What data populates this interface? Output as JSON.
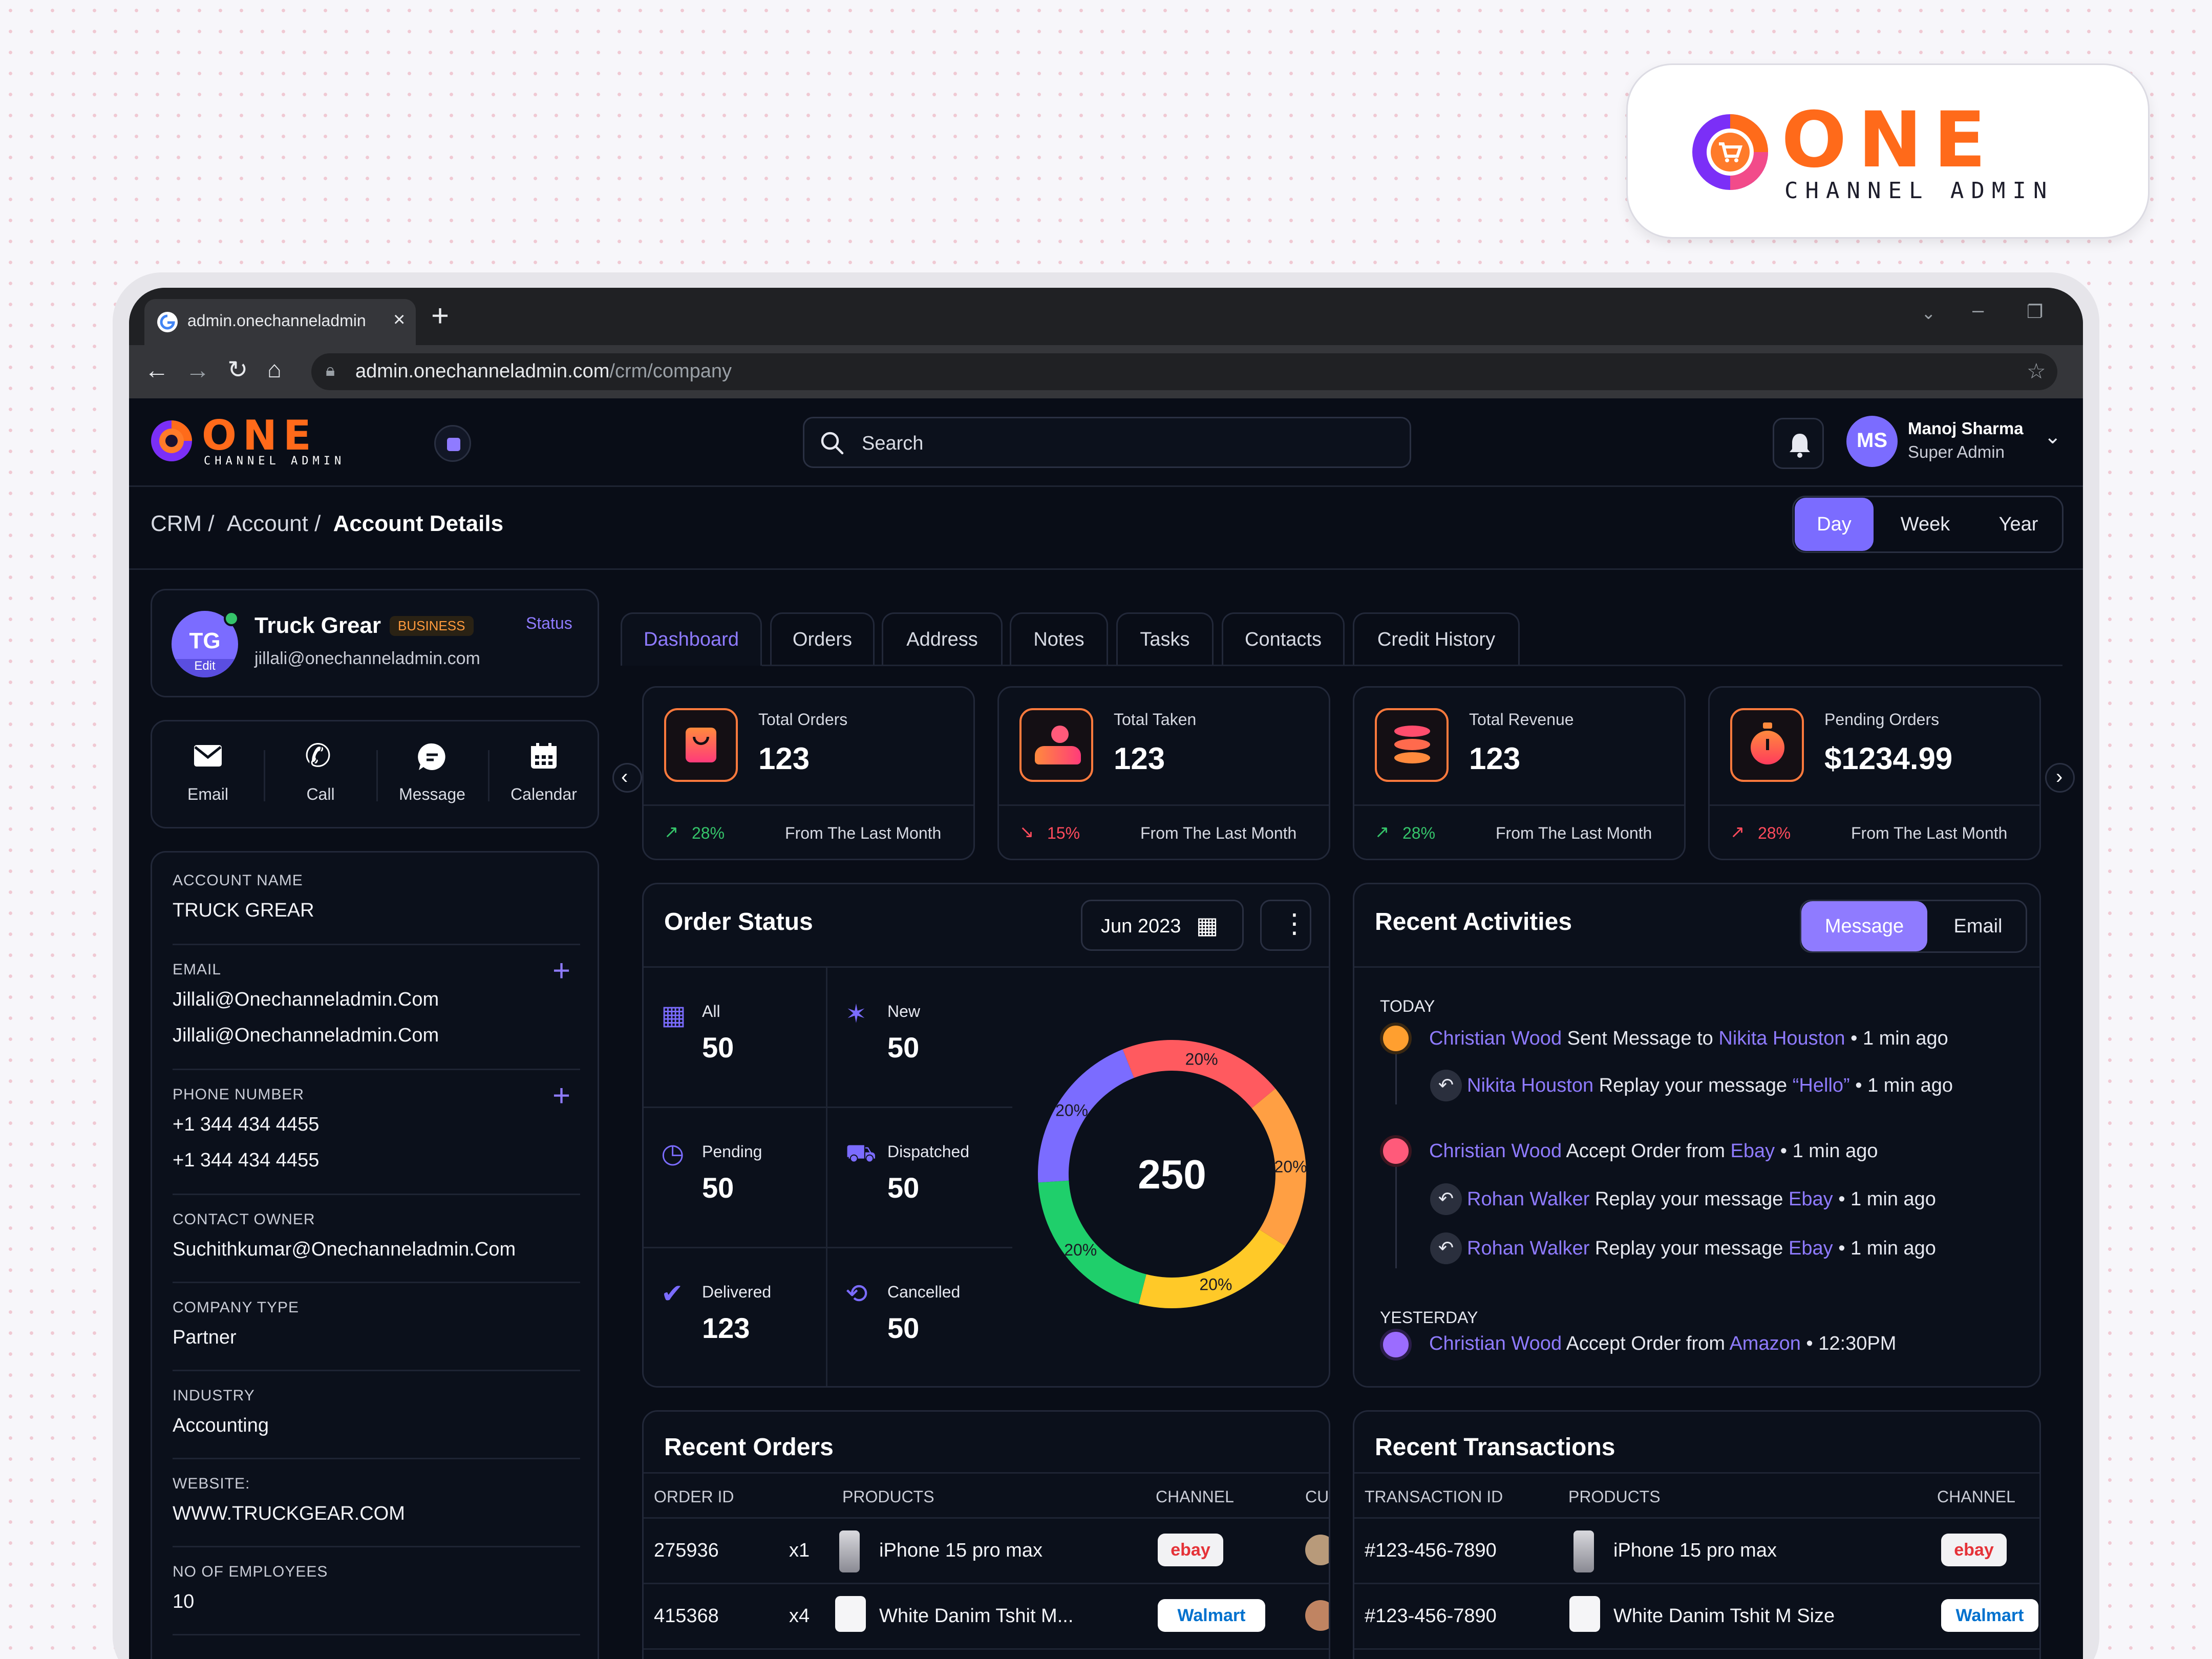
{
  "brand": {
    "word": "ONE",
    "subword": "CHANNEL ADMIN"
  },
  "browser": {
    "tab_title": "admin.onechanneladmin",
    "url_domain": "admin.onechanneladmin.com",
    "url_path": "/crm/company"
  },
  "header": {
    "search_placeholder": "Search",
    "user_initials": "MS",
    "user_name": "Manoj Sharma",
    "user_role": "Super Admin"
  },
  "breadcrumb": {
    "crm": "CRM /",
    "account": "Account /",
    "current": "Account Details"
  },
  "period": {
    "day": "Day",
    "week": "Week",
    "year": "Year",
    "selected": "Day"
  },
  "profile": {
    "initials": "TG",
    "edit": "Edit",
    "name": "Truck Grear",
    "badge": "BUSINESS",
    "status": "Status",
    "email": "jillali@onechanneladmin.com"
  },
  "actions": {
    "email": "Email",
    "call": "Call",
    "message": "Message",
    "calendar": "Calendar"
  },
  "details": [
    {
      "label": "ACCOUNT NAME",
      "values": [
        "TRUCK GREAR"
      ],
      "addable": false
    },
    {
      "label": "EMAIL",
      "values": [
        "Jillali@Onechanneladmin.Com",
        "Jillali@Onechanneladmin.Com"
      ],
      "addable": true
    },
    {
      "label": "PHONE NUMBER",
      "values": [
        "+1 344 434 4455",
        "+1 344 434 4455"
      ],
      "addable": true
    },
    {
      "label": "CONTACT OWNER",
      "values": [
        "Suchithkumar@Onechanneladmin.Com"
      ],
      "addable": false
    },
    {
      "label": "COMPANY TYPE",
      "values": [
        "Partner"
      ],
      "addable": false
    },
    {
      "label": "INDUSTRY",
      "values": [
        "Accounting"
      ],
      "addable": false
    },
    {
      "label": "WEBSITE:",
      "values": [
        "WWW.TRUCKGEAR.COM"
      ],
      "addable": false
    },
    {
      "label": "NO OF EMPLOYEES",
      "values": [
        "10"
      ],
      "addable": false
    }
  ],
  "tabs": [
    "Dashboard",
    "Orders",
    "Address",
    "Notes",
    "Tasks",
    "Contacts",
    "Credit History"
  ],
  "stats": [
    {
      "title": "Total Orders",
      "value": "123",
      "change": "28%",
      "trend": "up",
      "note": "From The Last Month"
    },
    {
      "title": "Total Taken",
      "value": "123",
      "change": "15%",
      "trend": "down",
      "note": "From The Last Month"
    },
    {
      "title": "Total Revenue",
      "value": "123",
      "change": "28%",
      "trend": "up",
      "note": "From The Last Month"
    },
    {
      "title": "Pending Orders",
      "value": "$1234.99",
      "change": "28%",
      "trend": "up-red",
      "note": "From The Last Month"
    }
  ],
  "order_status": {
    "title": "Order Status",
    "month": "Jun 2023",
    "items": [
      {
        "label": "All",
        "value": "50"
      },
      {
        "label": "New",
        "value": "50"
      },
      {
        "label": "Pending",
        "value": "50"
      },
      {
        "label": "Dispatched",
        "value": "50"
      },
      {
        "label": "Delivered",
        "value": "123"
      },
      {
        "label": "Cancelled",
        "value": "50"
      }
    ],
    "donut_total": "250"
  },
  "chart_data": {
    "type": "pie",
    "title": "",
    "categories": [
      "Red",
      "Orange",
      "Yellow",
      "Green",
      "Purple"
    ],
    "values": [
      20,
      20,
      20,
      20,
      20
    ],
    "labels": [
      "20%",
      "20%",
      "20%",
      "20%",
      "20%"
    ],
    "colors": [
      "#ff5a5f",
      "#ff9f43",
      "#ffc928",
      "#1fcf6b",
      "#7b6cff"
    ],
    "center_label": "250"
  },
  "activities": {
    "title": "Recent Activities",
    "toggle": {
      "message": "Message",
      "email": "Email",
      "selected": "Message"
    },
    "today": "TODAY",
    "yesterday": "YESTERDAY",
    "a1": {
      "who": "Christian Wood",
      "text": " Sent Message to ",
      "target": "Nikita Houston",
      "time": "• 1 min ago"
    },
    "a1r": {
      "who": "Nikita Houston",
      "text": " Replay your message ",
      "target": "“Hello”",
      "time": "• 1 min ago"
    },
    "a2": {
      "who": "Christian Wood",
      "text": " Accept Order from ",
      "target": "Ebay",
      "time": "• 1 min ago"
    },
    "a2r1": {
      "who": "Rohan Walker",
      "text": " Replay your message ",
      "target": "Ebay",
      "time": "• 1 min ago"
    },
    "a2r2": {
      "who": "Rohan Walker",
      "text": " Replay your message ",
      "target": "Ebay",
      "time": "• 1 min ago"
    },
    "a3": {
      "who": "Christian Wood",
      "text": " Accept Order from ",
      "target": "Amazon",
      "time": "• 12:30PM"
    }
  },
  "recent_orders": {
    "title": "Recent Orders",
    "columns": [
      "ORDER ID",
      "PRODUCTS",
      "CHANNEL",
      "CU"
    ],
    "rows": [
      {
        "id": "275936",
        "qty": "x1",
        "product": "iPhone 15 pro max",
        "channel": "ebay"
      },
      {
        "id": "415368",
        "qty": "x4",
        "product": "White Danim Tshit M...",
        "channel": "Walmart"
      }
    ]
  },
  "recent_transactions": {
    "title": "Recent Transactions",
    "columns": [
      "TRANSACTION ID",
      "PRODUCTS",
      "CHANNEL"
    ],
    "rows": [
      {
        "id": "#123-456-7890",
        "product": "iPhone 15 pro max",
        "channel": "ebay"
      },
      {
        "id": "#123-456-7890",
        "product": "White Danim Tshit M Size",
        "channel": "Walmart"
      }
    ]
  }
}
